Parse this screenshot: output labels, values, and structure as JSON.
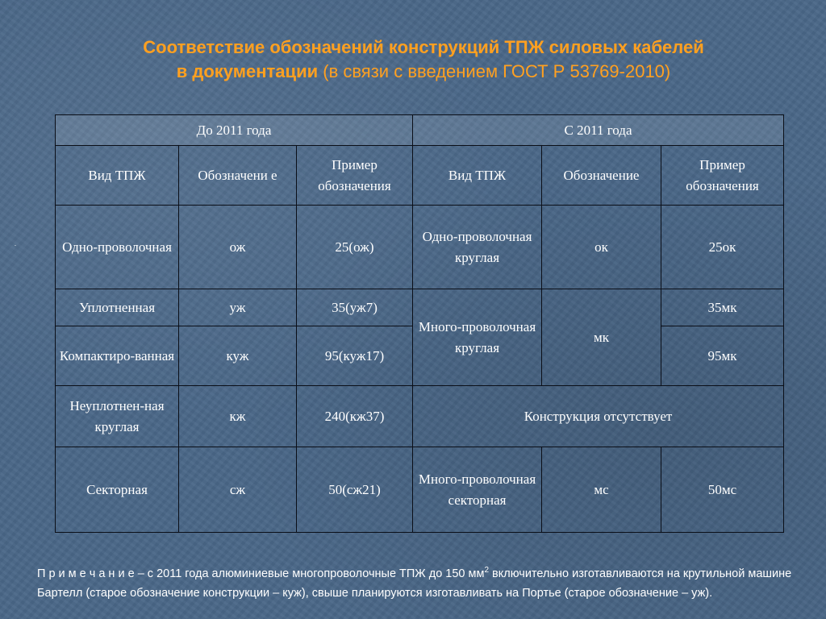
{
  "title": {
    "line1": "Соответствие обозначений  конструкций ТПЖ  силовых кабелей",
    "line2_bold": "в документации",
    "line2_rest": " (в связи с введением ГОСТ Р 53769-2010)"
  },
  "table": {
    "group_before": "До 2011 года",
    "group_after": "С 2011 года",
    "headers": {
      "type": "Вид ТПЖ",
      "designation_wrapped": "Обозначени е",
      "example": "Пример обозначения",
      "type_new": "Вид ТПЖ",
      "designation": "Обозначение",
      "example_new": "Пример обозначения"
    },
    "rows": {
      "r1": {
        "type": "Одно-проволочная",
        "code": "ож",
        "example": "25(ож)",
        "type_new": "Одно-проволочная круглая",
        "code_new": "ок",
        "example_new": "25ок"
      },
      "r2": {
        "type": "Уплотненная",
        "code": "уж",
        "example": "35(уж7)",
        "example_new": "35мк"
      },
      "r3": {
        "type": "Компактиро-ванная",
        "code": "куж",
        "example": "95(куж17)",
        "example_new": "95мк"
      },
      "merged_type_new": "Много-проволочная круглая",
      "merged_code_new": "мк",
      "r4": {
        "type": "Неуплотнен-ная круглая",
        "code": "кж",
        "example": "240(кж37)",
        "absent": "Конструкция отсутствует"
      },
      "r5": {
        "type": "Секторная",
        "code": "сж",
        "example": "50(сж21)",
        "type_new": "Много-проволочная секторная",
        "code_new": "мс",
        "example_new": "50мс"
      }
    }
  },
  "note": {
    "prefix": "П р и м е ч а н и е",
    "text1": " – с 2011 года алюминиевые многопроволочные ТПЖ до 150 мм",
    "sup": "2",
    "text2": " включительно изготавливаются на крутильной машине Бартелл (старое обозначение конструкции – куж), свыше планируются изготавливать на Портье (старое обозначение – уж)."
  }
}
